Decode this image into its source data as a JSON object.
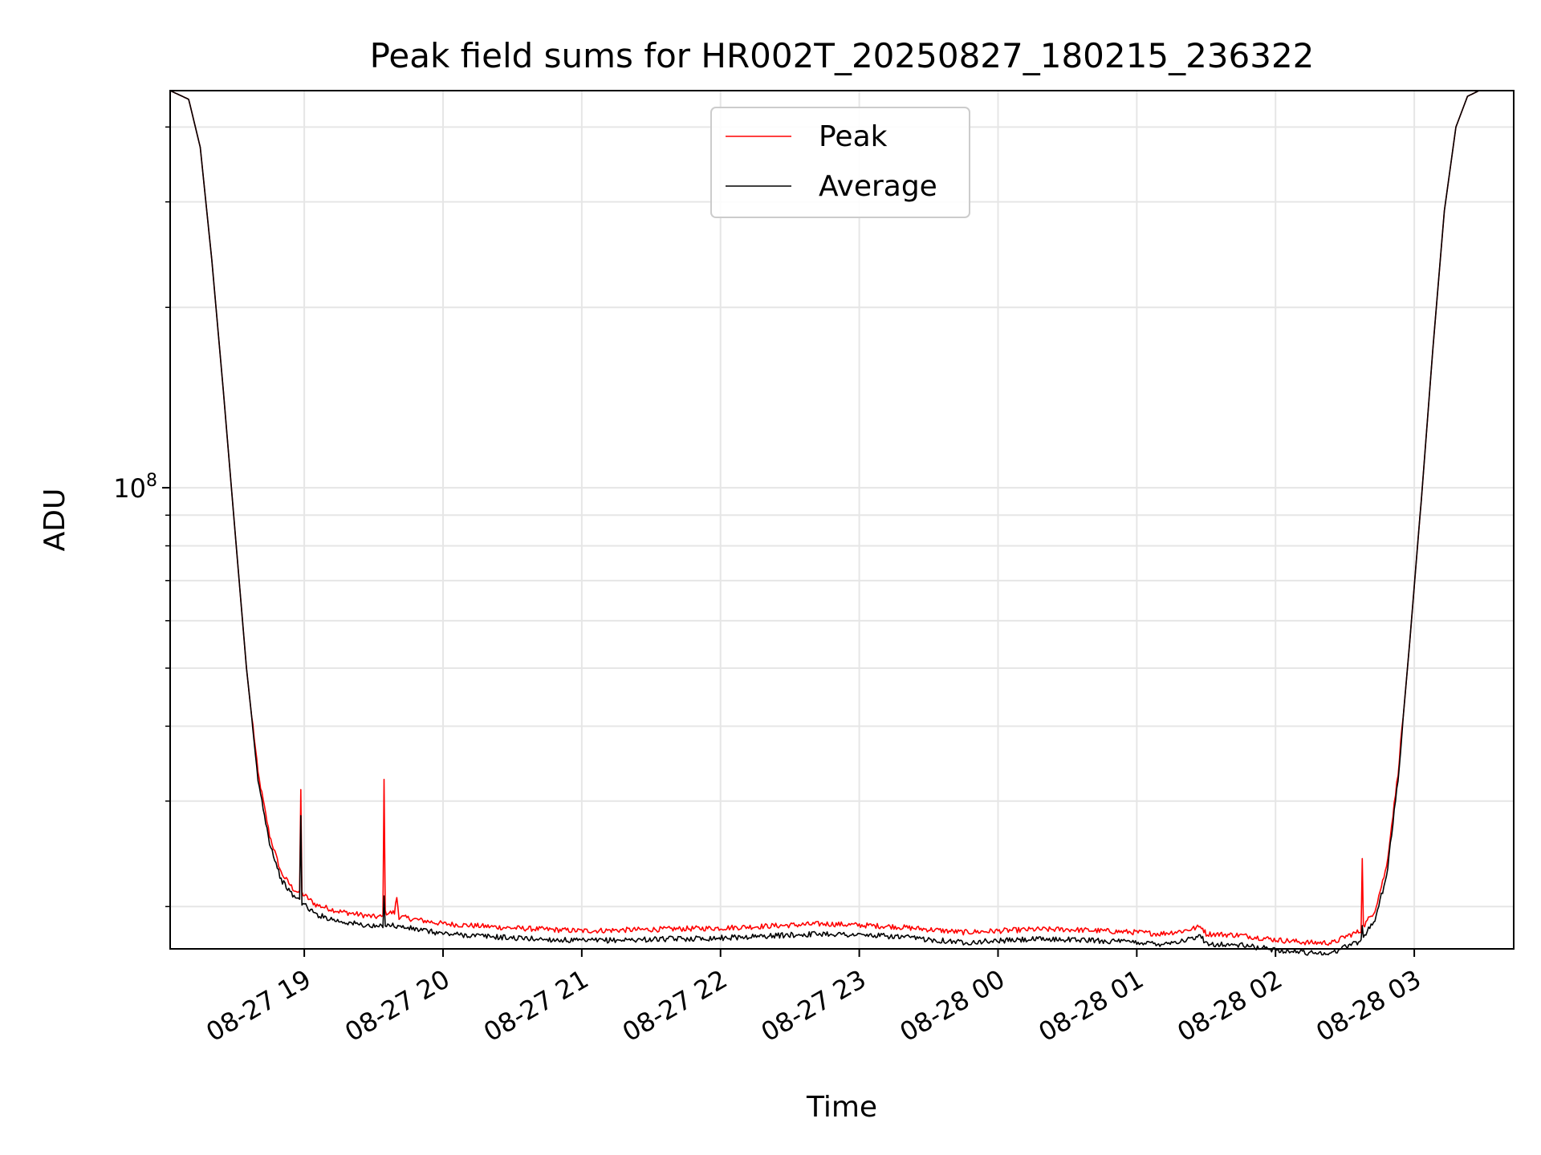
{
  "chart_data": {
    "type": "line",
    "title": "Peak field sums for HR002T_20250827_180215_236322",
    "xlabel": "Time",
    "ylabel": "ADU",
    "yscale": "log",
    "ylim": [
      17000000,
      460000000
    ],
    "xlim": [
      "2025-08-27T18:02",
      "2025-08-28T03:43"
    ],
    "y_tick_major": [
      {
        "value": 100000000,
        "base": "10",
        "exp": "8"
      }
    ],
    "y_tick_minor": [
      20000000,
      30000000,
      40000000,
      50000000,
      60000000,
      70000000,
      80000000,
      90000000,
      200000000,
      300000000,
      400000000
    ],
    "x_ticks": [
      {
        "t": "2025-08-27T19:00",
        "label": "08-27 19"
      },
      {
        "t": "2025-08-27T20:00",
        "label": "08-27 20"
      },
      {
        "t": "2025-08-27T21:00",
        "label": "08-27 21"
      },
      {
        "t": "2025-08-27T22:00",
        "label": "08-27 22"
      },
      {
        "t": "2025-08-27T23:00",
        "label": "08-27 23"
      },
      {
        "t": "2025-08-28T00:00",
        "label": "08-28 00"
      },
      {
        "t": "2025-08-28T01:00",
        "label": "08-28 01"
      },
      {
        "t": "2025-08-28T02:00",
        "label": "08-28 02"
      },
      {
        "t": "2025-08-28T03:00",
        "label": "08-28 03"
      }
    ],
    "grid": true,
    "legend_position": "upper-center",
    "series": [
      {
        "name": "Peak",
        "color": "#ff0000",
        "offset_factor": 1.012,
        "points": [
          [
            "2025-08-27T18:02",
            460000000
          ],
          [
            "2025-08-27T18:10",
            445000000
          ],
          [
            "2025-08-27T18:15",
            370000000
          ],
          [
            "2025-08-27T18:20",
            240000000
          ],
          [
            "2025-08-27T18:25",
            145000000
          ],
          [
            "2025-08-27T18:30",
            85000000
          ],
          [
            "2025-08-27T18:35",
            50000000
          ],
          [
            "2025-08-27T18:40",
            33000000
          ],
          [
            "2025-08-27T18:45",
            26000000
          ],
          [
            "2025-08-27T18:50",
            22500000
          ],
          [
            "2025-08-27T18:55",
            21200000
          ],
          [
            "2025-08-27T18:58",
            20800000
          ],
          [
            "2025-08-27T18:58:30",
            31000000
          ],
          [
            "2025-08-27T18:59",
            20800000
          ],
          [
            "2025-08-27T19:05",
            19900000
          ],
          [
            "2025-08-27T19:15",
            19400000
          ],
          [
            "2025-08-27T19:30",
            19000000
          ],
          [
            "2025-08-27T19:34",
            19000000
          ],
          [
            "2025-08-27T19:34:30",
            32500000
          ],
          [
            "2025-08-27T19:35",
            19300000
          ],
          [
            "2025-08-27T19:39",
            19300000
          ],
          [
            "2025-08-27T19:40",
            20500000
          ],
          [
            "2025-08-27T19:41",
            19000000
          ],
          [
            "2025-08-27T20:00",
            18500000
          ],
          [
            "2025-08-27T20:30",
            18200000
          ],
          [
            "2025-08-27T21:00",
            18000000
          ],
          [
            "2025-08-27T21:30",
            18100000
          ],
          [
            "2025-08-27T22:00",
            18200000
          ],
          [
            "2025-08-27T22:30",
            18400000
          ],
          [
            "2025-08-27T22:45",
            18500000
          ],
          [
            "2025-08-27T23:00",
            18400000
          ],
          [
            "2025-08-27T23:15",
            18300000
          ],
          [
            "2025-08-27T23:30",
            18100000
          ],
          [
            "2025-08-27T23:45",
            17900000
          ],
          [
            "2025-08-28T00:00",
            18000000
          ],
          [
            "2025-08-28T00:15",
            18100000
          ],
          [
            "2025-08-28T00:30",
            18100000
          ],
          [
            "2025-08-28T00:45",
            18000000
          ],
          [
            "2025-08-28T01:00",
            17900000
          ],
          [
            "2025-08-28T01:10",
            17800000
          ],
          [
            "2025-08-28T01:20",
            18000000
          ],
          [
            "2025-08-28T01:28",
            18300000
          ],
          [
            "2025-08-28T01:30",
            17800000
          ],
          [
            "2025-08-28T01:45",
            17700000
          ],
          [
            "2025-08-28T02:00",
            17400000
          ],
          [
            "2025-08-28T02:15",
            17200000
          ],
          [
            "2025-08-28T02:25",
            17200000
          ],
          [
            "2025-08-28T02:30",
            17600000
          ],
          [
            "2025-08-28T02:37",
            18000000
          ],
          [
            "2025-08-28T02:37:30",
            24000000
          ],
          [
            "2025-08-28T02:38",
            18300000
          ],
          [
            "2025-08-28T02:43",
            19500000
          ],
          [
            "2025-08-28T02:48",
            23000000
          ],
          [
            "2025-08-28T02:53",
            33000000
          ],
          [
            "2025-08-28T02:58",
            55000000
          ],
          [
            "2025-08-28T03:03",
            95000000
          ],
          [
            "2025-08-28T03:08",
            170000000
          ],
          [
            "2025-08-28T03:13",
            290000000
          ],
          [
            "2025-08-28T03:18",
            400000000
          ],
          [
            "2025-08-28T03:23",
            450000000
          ],
          [
            "2025-08-28T03:28",
            460000000
          ],
          [
            "2025-08-28T03:43",
            460000000
          ]
        ]
      },
      {
        "name": "Average",
        "color": "#000000",
        "offset_factor": 0.985,
        "points": [
          [
            "2025-08-27T18:02",
            460000000
          ],
          [
            "2025-08-27T18:10",
            445000000
          ],
          [
            "2025-08-27T18:15",
            370000000
          ],
          [
            "2025-08-27T18:20",
            240000000
          ],
          [
            "2025-08-27T18:25",
            145000000
          ],
          [
            "2025-08-27T18:30",
            85000000
          ],
          [
            "2025-08-27T18:35",
            50000000
          ],
          [
            "2025-08-27T18:40",
            33000000
          ],
          [
            "2025-08-27T18:45",
            26000000
          ],
          [
            "2025-08-27T18:50",
            22500000
          ],
          [
            "2025-08-27T18:55",
            21200000
          ],
          [
            "2025-08-27T18:58",
            20800000
          ],
          [
            "2025-08-27T18:58:30",
            29000000
          ],
          [
            "2025-08-27T18:59",
            20600000
          ],
          [
            "2025-08-27T19:05",
            19700000
          ],
          [
            "2025-08-27T19:15",
            19200000
          ],
          [
            "2025-08-27T19:30",
            18800000
          ],
          [
            "2025-08-27T19:34",
            18800000
          ],
          [
            "2025-08-27T19:34:30",
            21000000
          ],
          [
            "2025-08-27T19:35",
            19000000
          ],
          [
            "2025-08-27T19:41",
            18800000
          ],
          [
            "2025-08-27T20:00",
            18300000
          ],
          [
            "2025-08-27T20:30",
            18000000
          ],
          [
            "2025-08-27T21:00",
            17800000
          ],
          [
            "2025-08-27T21:30",
            17900000
          ],
          [
            "2025-08-27T22:00",
            18000000
          ],
          [
            "2025-08-27T22:30",
            18200000
          ],
          [
            "2025-08-27T22:45",
            18300000
          ],
          [
            "2025-08-27T23:00",
            18200000
          ],
          [
            "2025-08-27T23:15",
            18100000
          ],
          [
            "2025-08-27T23:30",
            17900000
          ],
          [
            "2025-08-27T23:45",
            17700000
          ],
          [
            "2025-08-28T00:00",
            17800000
          ],
          [
            "2025-08-28T00:15",
            17900000
          ],
          [
            "2025-08-28T00:30",
            17900000
          ],
          [
            "2025-08-28T00:45",
            17800000
          ],
          [
            "2025-08-28T01:00",
            17700000
          ],
          [
            "2025-08-28T01:10",
            17600000
          ],
          [
            "2025-08-28T01:20",
            17800000
          ],
          [
            "2025-08-28T01:28",
            18100000
          ],
          [
            "2025-08-28T01:30",
            17600000
          ],
          [
            "2025-08-28T01:45",
            17500000
          ],
          [
            "2025-08-28T02:00",
            17200000
          ],
          [
            "2025-08-28T02:15",
            17000000
          ],
          [
            "2025-08-28T02:25",
            17000000
          ],
          [
            "2025-08-28T02:30",
            17400000
          ],
          [
            "2025-08-28T02:37",
            17800000
          ],
          [
            "2025-08-28T02:37:30",
            18800000
          ],
          [
            "2025-08-28T02:38",
            18100000
          ],
          [
            "2025-08-28T02:43",
            19300000
          ],
          [
            "2025-08-28T02:48",
            22800000
          ],
          [
            "2025-08-28T02:53",
            33000000
          ],
          [
            "2025-08-28T02:58",
            55000000
          ],
          [
            "2025-08-28T03:03",
            95000000
          ],
          [
            "2025-08-28T03:08",
            170000000
          ],
          [
            "2025-08-28T03:13",
            290000000
          ],
          [
            "2025-08-28T03:18",
            400000000
          ],
          [
            "2025-08-28T03:23",
            450000000
          ],
          [
            "2025-08-28T03:28",
            460000000
          ],
          [
            "2025-08-28T03:43",
            460000000
          ]
        ]
      }
    ]
  }
}
